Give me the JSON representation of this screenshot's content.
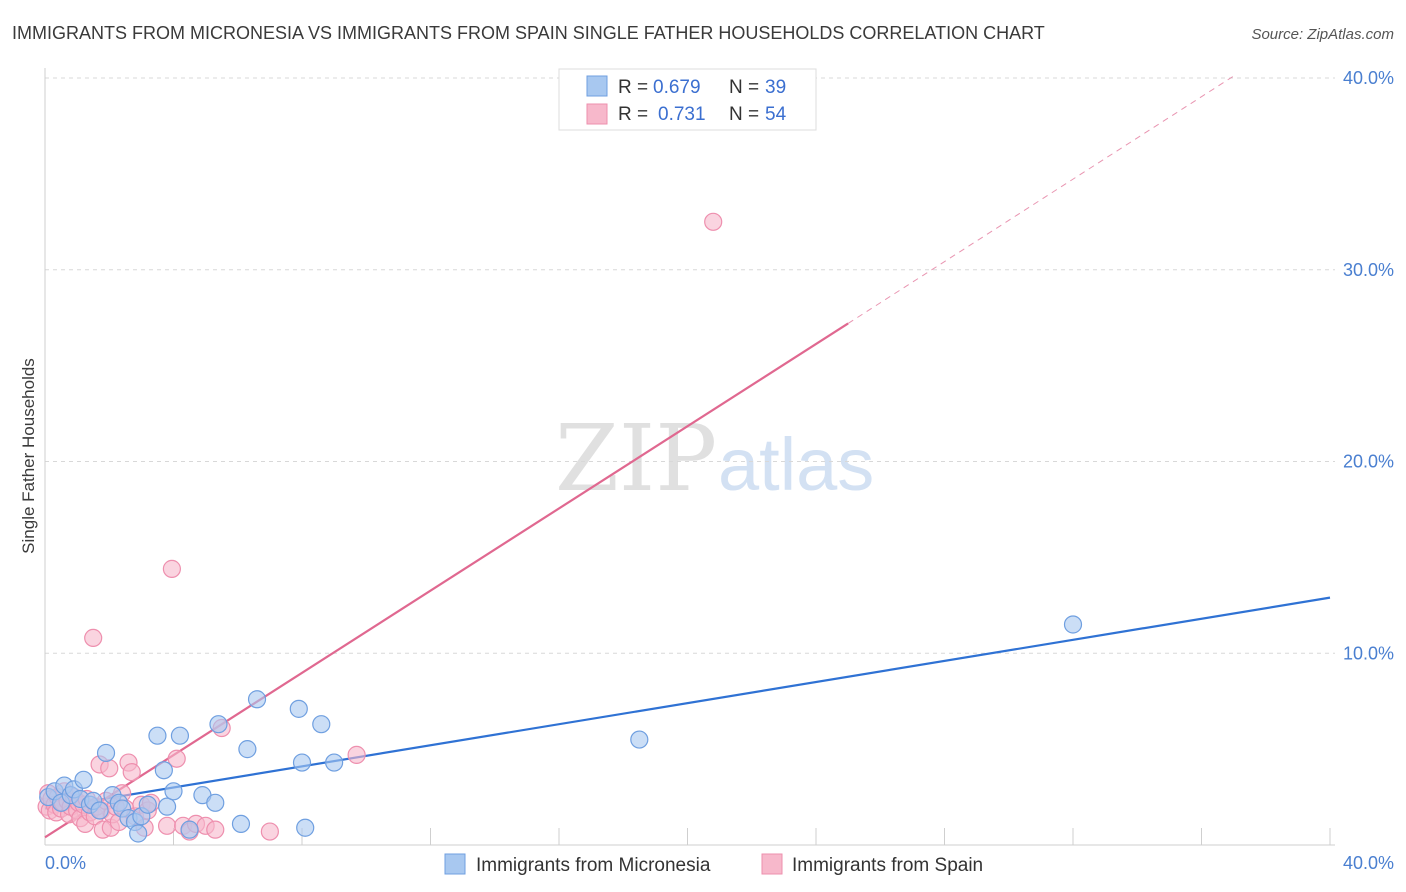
{
  "title": "IMMIGRANTS FROM MICRONESIA VS IMMIGRANTS FROM SPAIN SINGLE FATHER HOUSEHOLDS CORRELATION CHART",
  "source": "Source: ZipAtlas.com",
  "watermark": {
    "zip": "ZIP",
    "atlas": "atlas"
  },
  "colors": {
    "blue_fill": "#a8c8f0",
    "blue_stroke": "#6f9fe0",
    "blue_line": "#2f72d4",
    "pink_fill": "#f7b8cb",
    "pink_stroke": "#ee8fae",
    "pink_line": "#e06890",
    "tick_text": "#4a7fd0",
    "grid": "#d8d8d8"
  },
  "legend": {
    "r_label": "R =",
    "n_label": "N =",
    "blue": {
      "r": "0.679",
      "n": "39"
    },
    "pink": {
      "r": "0.731",
      "n": "54"
    }
  },
  "bottom_legend": {
    "blue": "Immigrants from Micronesia",
    "pink": "Immigrants from Spain"
  },
  "chart_data": {
    "type": "scatter",
    "title": "IMMIGRANTS FROM MICRONESIA VS IMMIGRANTS FROM SPAIN SINGLE FATHER HOUSEHOLDS CORRELATION CHART",
    "xlabel": "",
    "ylabel": "Single Father Households",
    "xlim": [
      0,
      40
    ],
    "ylim": [
      0,
      40
    ],
    "x_tick_labels": [
      "0.0%",
      "40.0%"
    ],
    "y_ticks": [
      10,
      20,
      30,
      40
    ],
    "y_tick_labels": [
      "10.0%",
      "20.0%",
      "30.0%",
      "40.0%"
    ],
    "grid": true,
    "series": [
      {
        "name": "Immigrants from Micronesia",
        "color": "blue",
        "r": 0.679,
        "n": 39,
        "points": [
          [
            0.1,
            2.5
          ],
          [
            0.3,
            2.8
          ],
          [
            0.5,
            2.2
          ],
          [
            0.6,
            3.1
          ],
          [
            0.8,
            2.6
          ],
          [
            0.9,
            2.9
          ],
          [
            1.1,
            2.4
          ],
          [
            1.2,
            3.4
          ],
          [
            1.4,
            2.1
          ],
          [
            1.5,
            2.3
          ],
          [
            1.7,
            1.8
          ],
          [
            1.9,
            4.8
          ],
          [
            2.1,
            2.6
          ],
          [
            2.3,
            2.2
          ],
          [
            2.4,
            1.9
          ],
          [
            2.6,
            1.4
          ],
          [
            2.8,
            1.2
          ],
          [
            2.9,
            0.6
          ],
          [
            3.0,
            1.5
          ],
          [
            3.2,
            2.1
          ],
          [
            3.5,
            5.7
          ],
          [
            3.7,
            3.9
          ],
          [
            3.8,
            2.0
          ],
          [
            4.0,
            2.8
          ],
          [
            4.2,
            5.7
          ],
          [
            4.5,
            0.8
          ],
          [
            4.9,
            2.6
          ],
          [
            5.3,
            2.2
          ],
          [
            5.4,
            6.3
          ],
          [
            6.1,
            1.1
          ],
          [
            6.3,
            5.0
          ],
          [
            6.6,
            7.6
          ],
          [
            7.9,
            7.1
          ],
          [
            8.0,
            4.3
          ],
          [
            8.1,
            0.9
          ],
          [
            8.6,
            6.3
          ],
          [
            9.0,
            4.3
          ],
          [
            18.5,
            5.5
          ],
          [
            32.0,
            11.5
          ]
        ]
      },
      {
        "name": "Immigrants from Spain",
        "color": "pink",
        "r": 0.731,
        "n": 54,
        "points": [
          [
            0.05,
            2.0
          ],
          [
            0.1,
            2.7
          ],
          [
            0.15,
            1.8
          ],
          [
            0.2,
            2.4
          ],
          [
            0.3,
            2.1
          ],
          [
            0.35,
            1.7
          ],
          [
            0.4,
            2.5
          ],
          [
            0.5,
            1.9
          ],
          [
            0.55,
            2.2
          ],
          [
            0.6,
            2.8
          ],
          [
            0.7,
            2.3
          ],
          [
            0.75,
            1.6
          ],
          [
            0.8,
            2.0
          ],
          [
            0.9,
            2.5
          ],
          [
            1.0,
            1.8
          ],
          [
            1.05,
            2.2
          ],
          [
            1.1,
            1.4
          ],
          [
            1.2,
            2.1
          ],
          [
            1.25,
            1.1
          ],
          [
            1.3,
            2.4
          ],
          [
            1.4,
            1.7
          ],
          [
            1.5,
            10.8
          ],
          [
            1.55,
            1.5
          ],
          [
            1.6,
            2.0
          ],
          [
            1.7,
            4.2
          ],
          [
            1.75,
            1.8
          ],
          [
            1.8,
            0.8
          ],
          [
            1.9,
            2.3
          ],
          [
            2.0,
            4.0
          ],
          [
            2.05,
            0.9
          ],
          [
            2.1,
            1.6
          ],
          [
            2.2,
            2.0
          ],
          [
            2.3,
            1.2
          ],
          [
            2.4,
            2.7
          ],
          [
            2.5,
            1.9
          ],
          [
            2.6,
            4.3
          ],
          [
            2.7,
            3.8
          ],
          [
            2.8,
            1.5
          ],
          [
            3.0,
            2.1
          ],
          [
            3.1,
            0.9
          ],
          [
            3.2,
            1.8
          ],
          [
            3.3,
            2.2
          ],
          [
            3.8,
            1.0
          ],
          [
            3.95,
            14.4
          ],
          [
            4.1,
            4.5
          ],
          [
            4.3,
            1.0
          ],
          [
            4.5,
            0.7
          ],
          [
            4.7,
            1.1
          ],
          [
            5.0,
            1.0
          ],
          [
            5.3,
            0.8
          ],
          [
            5.5,
            6.1
          ],
          [
            7.0,
            0.7
          ],
          [
            9.7,
            4.7
          ],
          [
            20.8,
            32.5
          ]
        ]
      }
    ],
    "trendlines": [
      {
        "series": "Immigrants from Micronesia",
        "x_start": 0,
        "y_start": 1.9,
        "x_end": 40,
        "y_end": 12.9,
        "style": "solid"
      },
      {
        "series": "Immigrants from Spain",
        "x_start": 0,
        "y_start": 0.4,
        "x_end": 25,
        "y_end": 27.2,
        "style": "solid"
      },
      {
        "series": "Immigrants from Spain",
        "x_start": 25,
        "y_start": 27.2,
        "x_end": 37,
        "y_end": 40.1,
        "style": "dashed"
      }
    ]
  }
}
